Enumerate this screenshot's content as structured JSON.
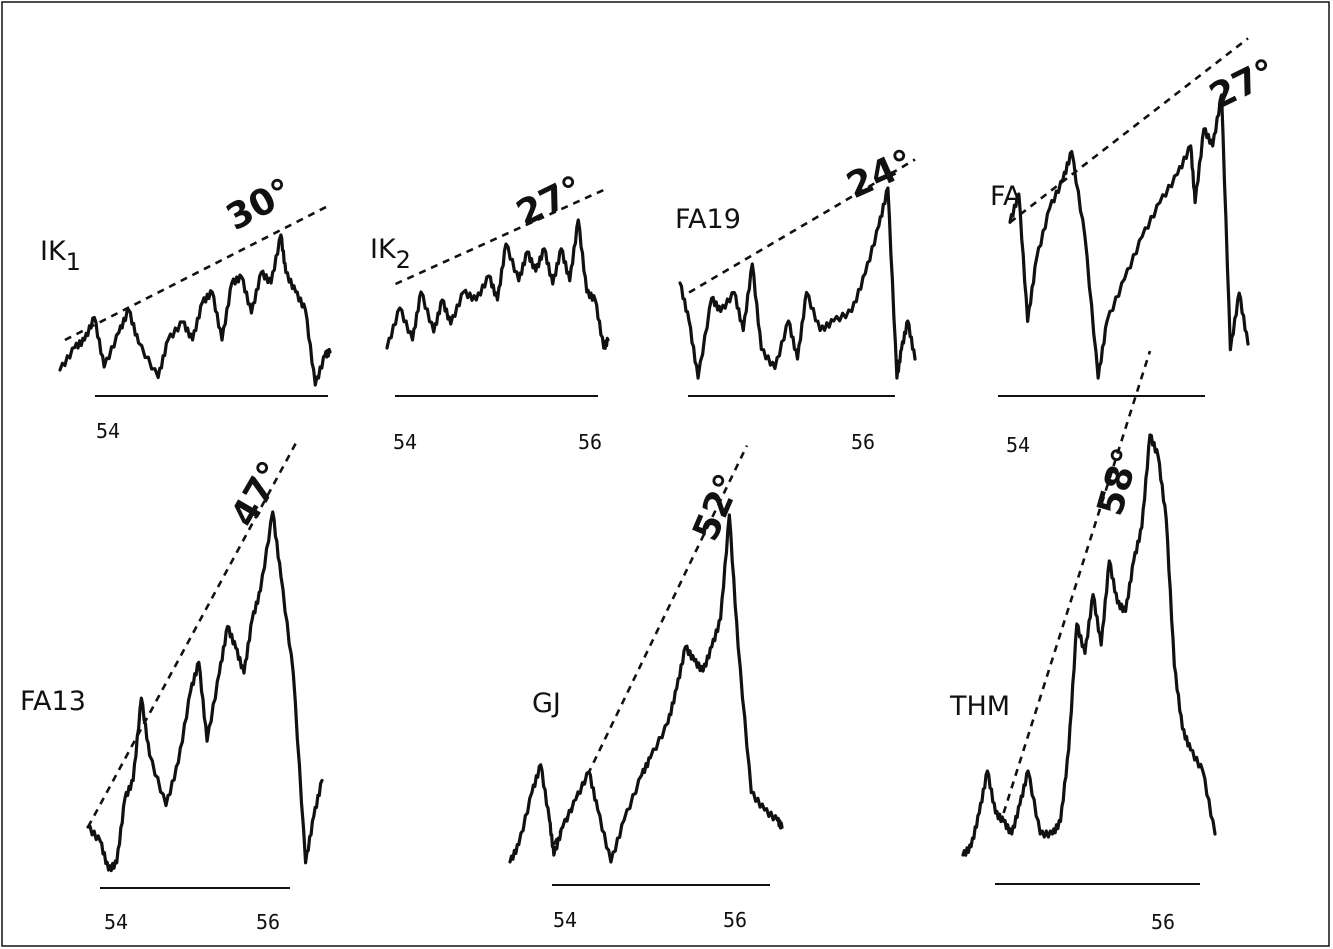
{
  "chart_data": [
    {
      "type": "line",
      "label": "IK",
      "label_sub": "1",
      "angle": "30°",
      "tick_labels": [
        "54"
      ],
      "xlim": [
        53.75,
        56.5
      ],
      "x": [
        53.75,
        53.9,
        54.0,
        54.1,
        54.2,
        54.35,
        54.45,
        54.55,
        54.75,
        54.85,
        55.0,
        55.1,
        55.2,
        55.3,
        55.4,
        55.5,
        55.6,
        55.7,
        55.8,
        55.9,
        56.0,
        56.05,
        56.15,
        56.25,
        56.35,
        56.45,
        56.5
      ],
      "y": [
        0.1,
        0.25,
        0.3,
        0.45,
        0.12,
        0.35,
        0.5,
        0.28,
        0.05,
        0.3,
        0.42,
        0.3,
        0.55,
        0.62,
        0.3,
        0.68,
        0.72,
        0.48,
        0.75,
        0.68,
        1.0,
        0.75,
        0.62,
        0.5,
        0.0,
        0.2,
        0.22
      ],
      "trend": [
        [
          53.8,
          0.3
        ],
        [
          56.5,
          1.2
        ]
      ]
    },
    {
      "type": "line",
      "label": "IK",
      "label_sub": "2",
      "angle": "27°",
      "tick_labels": [
        "54",
        "56"
      ],
      "xlim": [
        53.8,
        56.4
      ],
      "x": [
        53.8,
        53.95,
        54.1,
        54.2,
        54.35,
        54.45,
        54.55,
        54.7,
        54.85,
        55.0,
        55.1,
        55.2,
        55.35,
        55.45,
        55.55,
        55.65,
        55.75,
        55.85,
        55.95,
        56.05,
        56.15,
        56.25,
        56.35,
        56.4
      ],
      "y": [
        0.2,
        0.45,
        0.25,
        0.55,
        0.3,
        0.5,
        0.35,
        0.55,
        0.5,
        0.65,
        0.5,
        0.85,
        0.62,
        0.8,
        0.68,
        0.82,
        0.6,
        0.82,
        0.62,
        1.0,
        0.55,
        0.5,
        0.2,
        0.25
      ],
      "trend": [
        [
          53.9,
          0.6
        ],
        [
          56.4,
          1.2
        ]
      ]
    },
    {
      "type": "line",
      "label": "FA19",
      "angle": "24°",
      "tick_labels": [
        "56"
      ],
      "xlim": [
        53.8,
        56.4
      ],
      "x": [
        53.8,
        53.9,
        54.0,
        54.15,
        54.25,
        54.4,
        54.5,
        54.6,
        54.7,
        54.85,
        55.0,
        55.1,
        55.2,
        55.35,
        55.5,
        55.7,
        55.85,
        56.0,
        56.1,
        56.2,
        56.25,
        56.32,
        56.4
      ],
      "y": [
        0.5,
        0.3,
        0.0,
        0.42,
        0.35,
        0.45,
        0.25,
        0.6,
        0.15,
        0.05,
        0.3,
        0.1,
        0.45,
        0.25,
        0.3,
        0.35,
        0.55,
        0.8,
        1.0,
        0.0,
        0.15,
        0.3,
        0.1
      ],
      "trend": [
        [
          53.9,
          0.45
        ],
        [
          56.4,
          1.15
        ]
      ]
    },
    {
      "type": "line",
      "label": "FA",
      "angle": "27°",
      "tick_labels": [
        "54"
      ],
      "xlim": [
        53.9,
        56.6
      ],
      "x": [
        53.9,
        54.0,
        54.1,
        54.2,
        54.35,
        54.5,
        54.6,
        54.75,
        54.9,
        55.0,
        55.2,
        55.4,
        55.6,
        55.8,
        55.95,
        56.0,
        56.1,
        56.2,
        56.3,
        56.4,
        56.5,
        56.6
      ],
      "y": [
        0.55,
        0.65,
        0.2,
        0.42,
        0.6,
        0.7,
        0.8,
        0.5,
        0.0,
        0.2,
        0.35,
        0.5,
        0.62,
        0.72,
        0.82,
        0.62,
        0.88,
        0.82,
        1.0,
        0.1,
        0.3,
        0.12
      ],
      "trend": [
        [
          53.9,
          0.55
        ],
        [
          56.6,
          1.2
        ]
      ]
    },
    {
      "type": "line",
      "label": "FA13",
      "angle": "47°",
      "tick_labels": [
        "54",
        "56"
      ],
      "xlim": [
        53.75,
        56.6
      ],
      "x": [
        53.75,
        53.9,
        54.0,
        54.1,
        54.2,
        54.3,
        54.4,
        54.5,
        54.7,
        54.85,
        55.0,
        55.1,
        55.2,
        55.35,
        55.45,
        55.55,
        55.65,
        55.75,
        55.85,
        56.0,
        56.1,
        56.25,
        56.4,
        56.5,
        56.6
      ],
      "y": [
        0.12,
        0.08,
        0.0,
        0.02,
        0.2,
        0.25,
        0.48,
        0.32,
        0.18,
        0.3,
        0.5,
        0.58,
        0.36,
        0.55,
        0.68,
        0.62,
        0.55,
        0.7,
        0.78,
        1.0,
        0.82,
        0.55,
        0.02,
        0.15,
        0.25
      ],
      "trend": [
        [
          53.75,
          0.12
        ],
        [
          56.3,
          1.2
        ]
      ]
    },
    {
      "type": "line",
      "label": "GJ",
      "angle": "52°",
      "tick_labels": [
        "54",
        "56"
      ],
      "xlim": [
        53.5,
        56.6
      ],
      "x": [
        53.5,
        53.6,
        53.75,
        53.85,
        53.95,
        54.0,
        54.1,
        54.25,
        54.4,
        54.5,
        54.65,
        54.8,
        55.0,
        55.1,
        55.3,
        55.4,
        55.5,
        55.6,
        55.7,
        55.8,
        55.9,
        56.0,
        56.1,
        56.25,
        56.4,
        56.55,
        56.6
      ],
      "y": [
        0.0,
        0.05,
        0.2,
        0.28,
        0.12,
        0.02,
        0.1,
        0.18,
        0.26,
        0.15,
        0.0,
        0.12,
        0.25,
        0.3,
        0.4,
        0.5,
        0.62,
        0.58,
        0.55,
        0.62,
        0.7,
        1.0,
        0.62,
        0.2,
        0.15,
        0.12,
        0.1
      ],
      "trend": [
        [
          54.0,
          0.05
        ],
        [
          56.2,
          1.2
        ]
      ]
    },
    {
      "type": "line",
      "label": "THM",
      "angle": "58°",
      "tick_labels": [
        "56"
      ],
      "xlim": [
        53.5,
        56.6
      ],
      "x": [
        53.5,
        53.6,
        53.7,
        53.8,
        53.9,
        54.0,
        54.1,
        54.2,
        54.3,
        54.45,
        54.6,
        54.7,
        54.8,
        54.9,
        55.0,
        55.1,
        55.2,
        55.3,
        55.4,
        55.5,
        55.6,
        55.7,
        55.8,
        55.9,
        56.0,
        56.1,
        56.2,
        56.3,
        56.45,
        56.6
      ],
      "y": [
        0.0,
        0.02,
        0.1,
        0.2,
        0.1,
        0.08,
        0.05,
        0.12,
        0.2,
        0.05,
        0.05,
        0.08,
        0.25,
        0.55,
        0.48,
        0.62,
        0.5,
        0.7,
        0.6,
        0.58,
        0.7,
        0.78,
        1.0,
        0.95,
        0.8,
        0.45,
        0.3,
        0.25,
        0.2,
        0.05
      ],
      "trend": [
        [
          54.0,
          0.1
        ],
        [
          55.8,
          1.2
        ]
      ]
    }
  ]
}
